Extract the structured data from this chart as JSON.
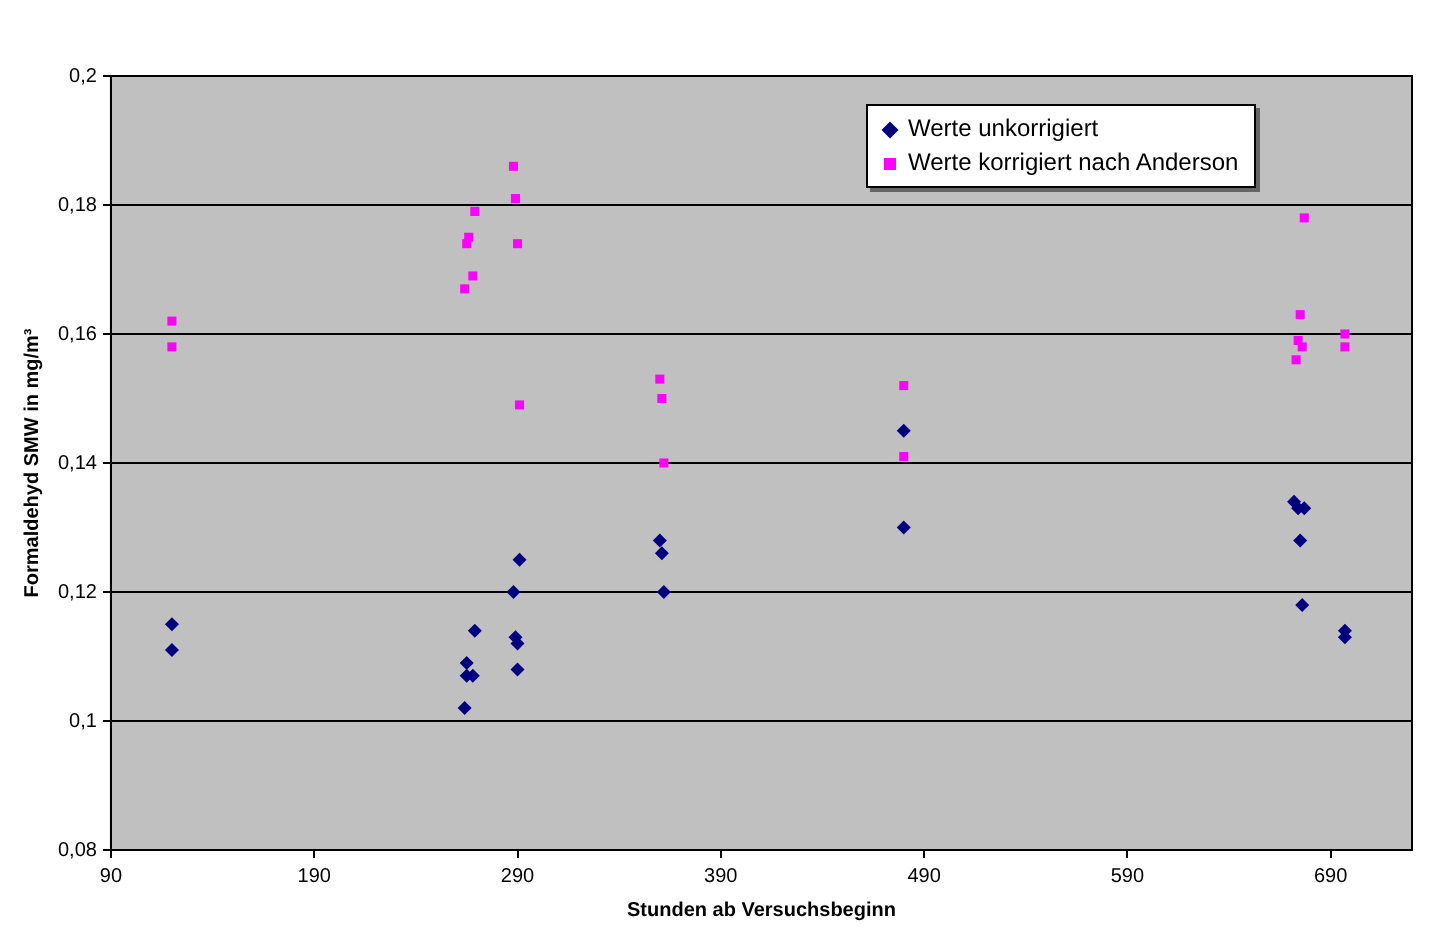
{
  "chart_data": {
    "type": "scatter",
    "xlabel": "Stunden ab Versuchsbeginn",
    "ylabel": "Formaldehyd SMW in mg/m³",
    "xlim": [
      90,
      730
    ],
    "xticks": [
      90,
      190,
      290,
      390,
      490,
      590,
      690
    ],
    "ylim": [
      0.08,
      0.2
    ],
    "yticks": [
      {
        "value": 0.08,
        "label": "0,08"
      },
      {
        "value": 0.1,
        "label": "0,1"
      },
      {
        "value": 0.12,
        "label": "0,12"
      },
      {
        "value": 0.14,
        "label": "0,14"
      },
      {
        "value": 0.16,
        "label": "0,16"
      },
      {
        "value": 0.18,
        "label": "0,18"
      },
      {
        "value": 0.2,
        "label": "0,2"
      }
    ],
    "grid": "y",
    "legend": "top right",
    "series": [
      {
        "name": "Werte unkorrigiert",
        "color": "#000080",
        "marker": "diamond",
        "x": [
          120,
          120,
          264,
          265,
          268,
          265,
          269,
          291,
          288,
          289,
          290,
          290,
          360,
          361,
          362,
          480,
          480,
          672,
          674,
          677,
          675,
          676,
          697,
          697
        ],
        "values": [
          0.115,
          0.111,
          0.102,
          0.107,
          0.107,
          0.109,
          0.114,
          0.125,
          0.12,
          0.113,
          0.112,
          0.108,
          0.128,
          0.126,
          0.12,
          0.145,
          0.13,
          0.134,
          0.133,
          0.133,
          0.128,
          0.118,
          0.114,
          0.113
        ]
      },
      {
        "name": "Werte korrigiert nach Anderson",
        "color": "#ff00ff",
        "marker": "square",
        "x": [
          120,
          120,
          264,
          268,
          265,
          266,
          269,
          288,
          289,
          290,
          291,
          360,
          361,
          362,
          480,
          480,
          677,
          675,
          674,
          676,
          673,
          697,
          697
        ],
        "values": [
          0.162,
          0.158,
          0.167,
          0.169,
          0.174,
          0.175,
          0.179,
          0.186,
          0.181,
          0.174,
          0.149,
          0.153,
          0.15,
          0.14,
          0.152,
          0.141,
          0.178,
          0.163,
          0.159,
          0.158,
          0.156,
          0.16,
          0.158
        ]
      }
    ]
  }
}
